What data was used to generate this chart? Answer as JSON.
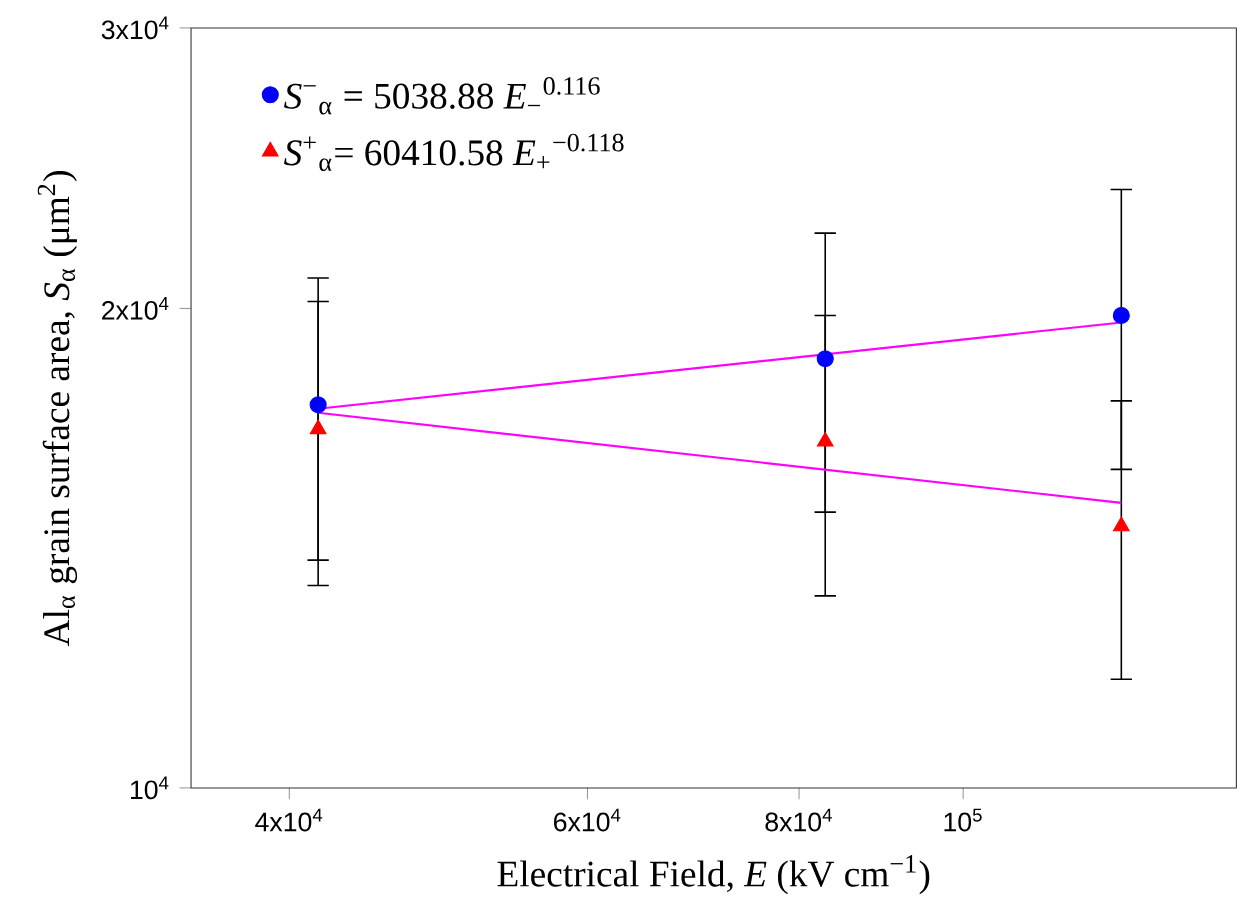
{
  "chart_data": {
    "type": "scatter",
    "xlabel": "Electrical Field, *E* (kV cm$^{−1}$)",
    "ylabel": "Al$_{α}$ grain surface area, *S*$_{α}$ (μm$^{2}$)",
    "log": "xy",
    "xlim": [
      35000,
      145000
    ],
    "ylim": [
      10000,
      30000
    ],
    "xticks": [
      {
        "value": 40000,
        "label": "4x10$^{4}$"
      },
      {
        "value": 60000,
        "label": "6x10$^{4}$"
      },
      {
        "value": 80000,
        "label": "8x10$^{4}$"
      },
      {
        "value": 100000,
        "label": "10$^{5}$"
      }
    ],
    "yticks": [
      {
        "value": 10000,
        "label": "10$^{4}$"
      },
      {
        "value": 20000,
        "label": "2x10$^{4}$"
      },
      {
        "value": 30000,
        "label": "3x10$^{4}$"
      }
    ],
    "legend": "top left",
    "grid": false,
    "series": [
      {
        "name": "*S*$^{−}$$_{α}$ = 5038.88  *E*$_{−}$$^{0.116}$",
        "marker": "circle",
        "color": "#0000ff",
        "x": [
          41600,
          82900,
          124000
        ],
        "values": [
          17400,
          18600,
          19800
        ],
        "errors": [
          3500,
          3700,
          3950
        ]
      },
      {
        "name": "*S*$^{+}$$_{α}$= 60410.58  *E*$_{+}$$^{−0.118}$",
        "marker": "triangle",
        "color": "#ff0000",
        "x": [
          41600,
          82900,
          124000
        ],
        "values": [
          16800,
          16500,
          14600
        ],
        "errors": [
          3400,
          3300,
          2900
        ]
      },
      {
        "type": "line",
        "marker": "none",
        "color": "#ff00ff",
        "x": [
          41600,
          124000
        ],
        "values": [
          17300,
          19600
        ]
      },
      {
        "type": "line",
        "marker": "none",
        "color": "#ff00ff",
        "x": [
          41600,
          124000
        ],
        "values": [
          17200,
          15100
        ]
      }
    ]
  }
}
